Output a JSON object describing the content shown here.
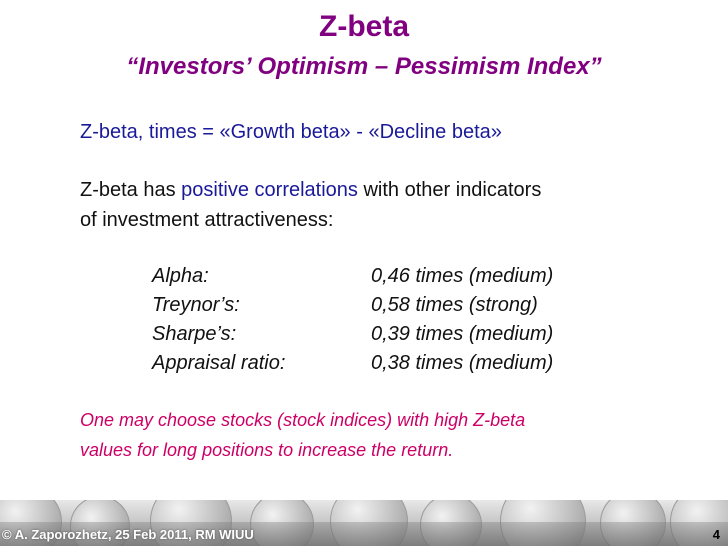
{
  "slide": {
    "title": "Z-beta",
    "subtitle": "“Investors’ Optimism – Pessimism Index”",
    "formula": "Z-beta, times = «Growth beta» - «Decline beta»",
    "correlation": {
      "prefix": "Z-beta has ",
      "keyword": "positive correlations",
      "suffix": " with other indicators",
      "line2": "of investment attractiveness:"
    },
    "metrics": [
      {
        "name": "Alpha:",
        "value": "0,46 times (medium)"
      },
      {
        "name": "Treynor’s:",
        "value": "0,58 times (strong)"
      },
      {
        "name": "Sharpe’s:",
        "value": "0,39 times (medium)"
      },
      {
        "name": "Appraisal ratio:",
        "value": "0,38 times (medium)"
      }
    ],
    "note": {
      "line1": "One may choose stocks (stock indices) with high Z-beta",
      "line2": "values for long positions to increase the return."
    }
  },
  "footer": {
    "credit": "© A. Zaporozhetz, 25 Feb 2011, RM WIUU",
    "page_number": "4"
  },
  "colors": {
    "title": "#800080",
    "keyword": "#1a1a99",
    "note": "#cc0066"
  }
}
